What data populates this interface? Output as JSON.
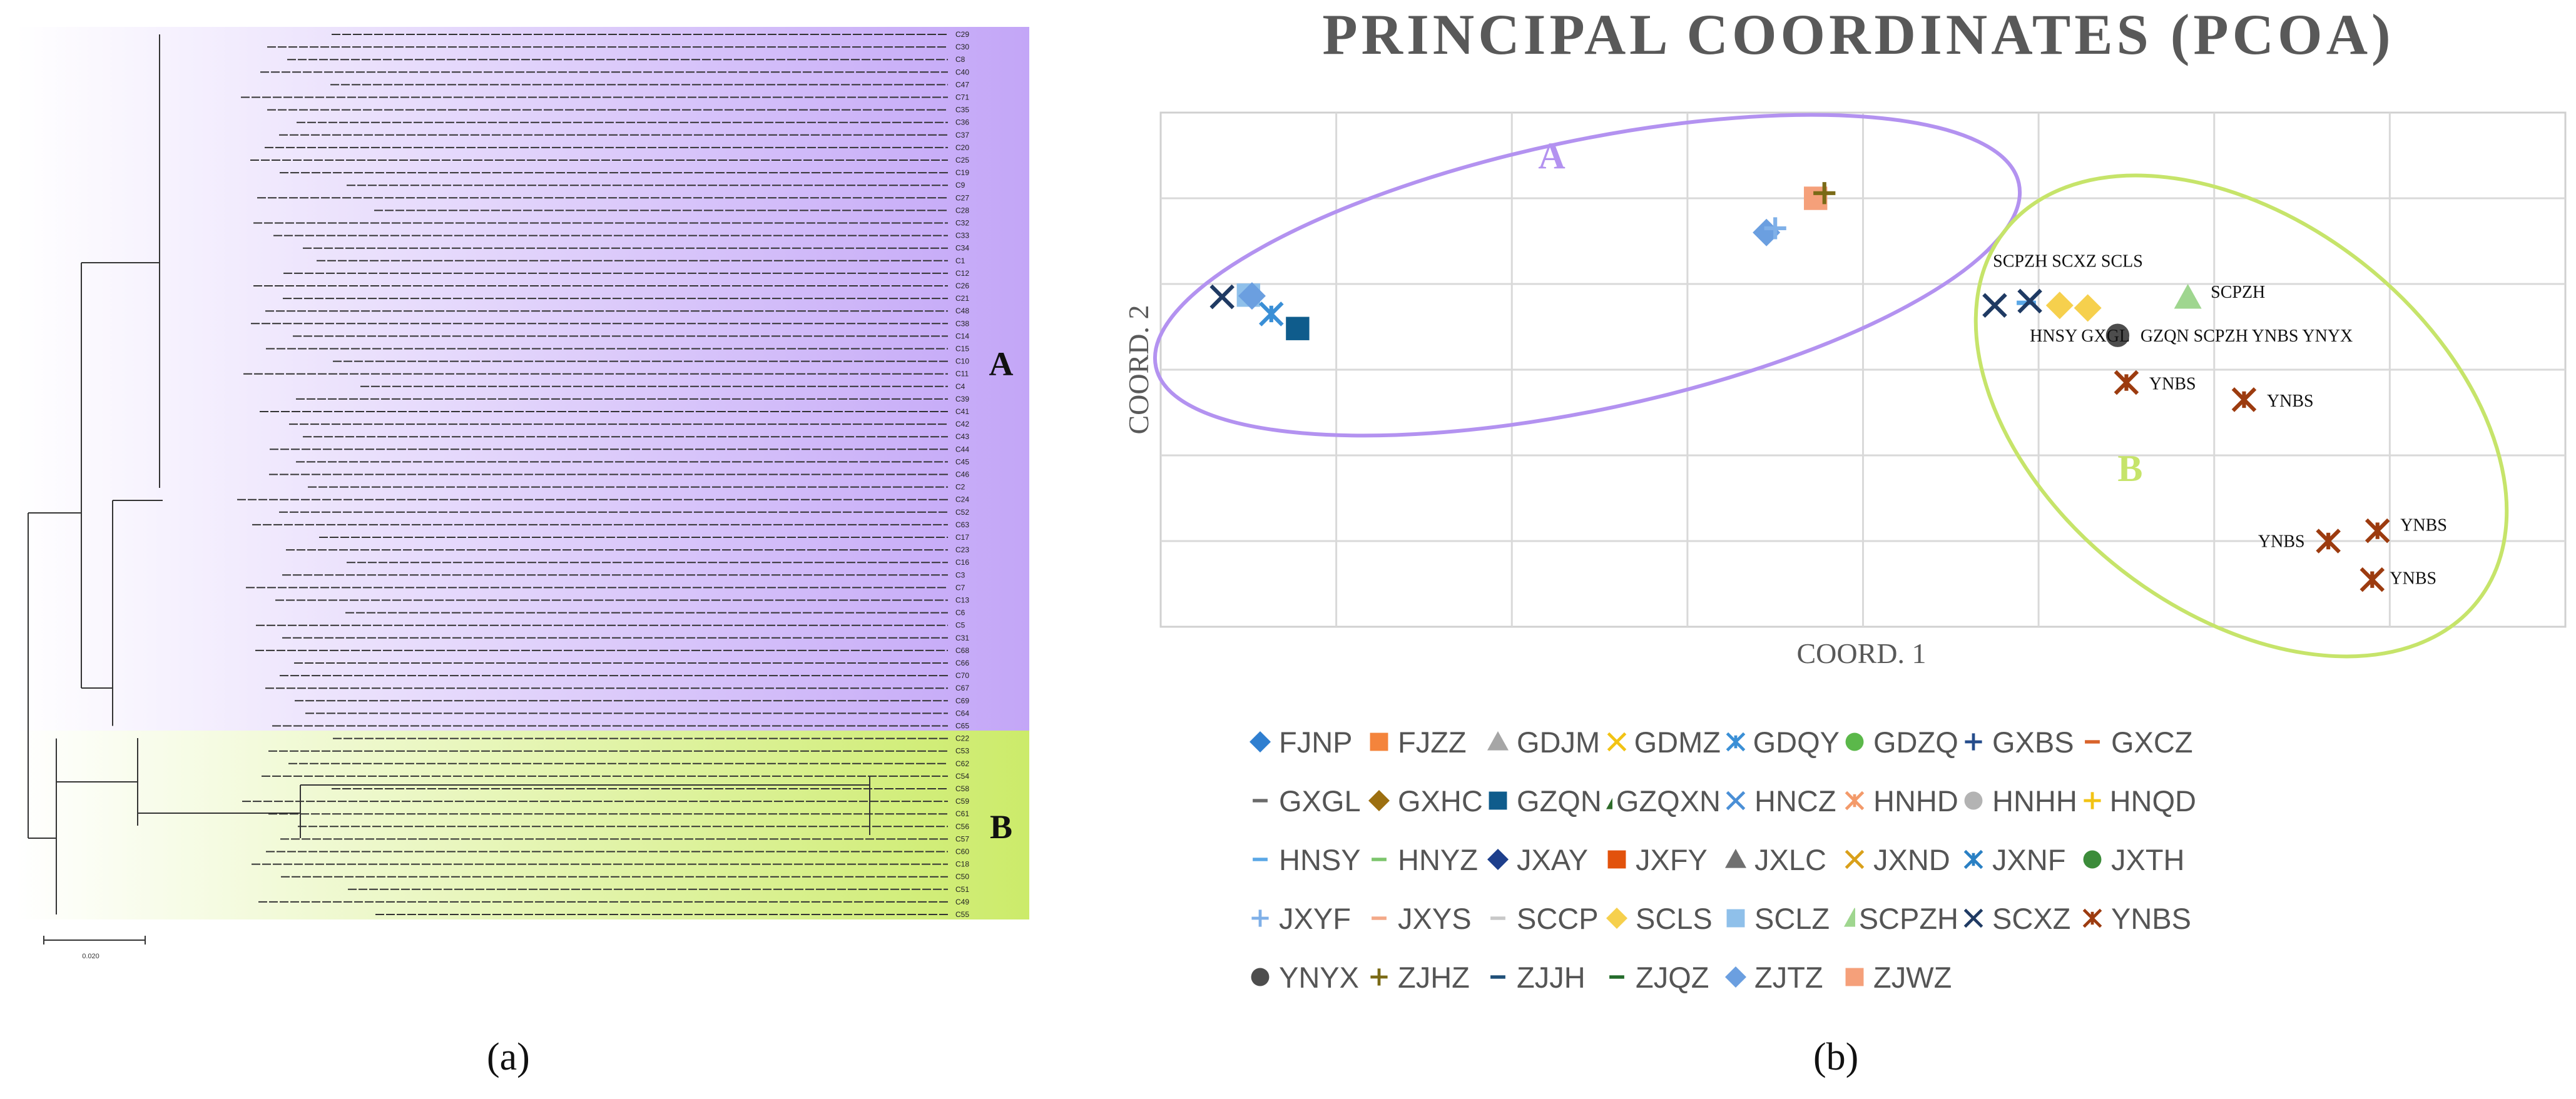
{
  "panel_a": {
    "caption": "(a)",
    "cluster_a_label": "A",
    "cluster_b_label": "B",
    "scale_label": "0.020",
    "colors": {
      "cluster_a": "#c3a6f7",
      "cluster_b": "#cceb6a"
    },
    "cluster_a_leaves": [
      "C29",
      "C30",
      "C8",
      "C40",
      "C47",
      "C71",
      "C35",
      "C36",
      "C37",
      "C20",
      "C25",
      "C19",
      "C9",
      "C27",
      "C28",
      "C32",
      "C33",
      "C34",
      "C1",
      "C12",
      "C26",
      "C21",
      "C48",
      "C38",
      "C14",
      "C15",
      "C10",
      "C11",
      "C4",
      "C39",
      "C41",
      "C42",
      "C43",
      "C44",
      "C45",
      "C46",
      "C2",
      "C24",
      "C52",
      "C63",
      "C17",
      "C23",
      "C16",
      "C3",
      "C7",
      "C13",
      "C6",
      "C5",
      "C31",
      "C68",
      "C66",
      "C70",
      "C67",
      "C69",
      "C64",
      "C65"
    ],
    "cluster_b_leaves": [
      "C22",
      "C53",
      "C62",
      "C54",
      "C58",
      "C59",
      "C61",
      "C56",
      "C57",
      "C60",
      "C18",
      "C50",
      "C51",
      "C49",
      "C55"
    ]
  },
  "panel_b": {
    "caption": "(b)",
    "chart_data": {
      "type": "scatter",
      "title": "PRINCIPAL COORDINATES (PCOA)",
      "xlabel": "COORD. 1",
      "ylabel": "COORD. 2",
      "xlim": [
        0,
        8
      ],
      "ylim": [
        0,
        6
      ],
      "grid": true,
      "groups": [
        {
          "label": "A",
          "color": "#b392f0"
        },
        {
          "label": "B",
          "color": "#c6e46a"
        }
      ],
      "points": [
        {
          "series": "SCXZ",
          "x": 0.35,
          "y": 3.85
        },
        {
          "series": "SCLZ",
          "x": 0.5,
          "y": 3.87
        },
        {
          "series": "ZJTZ",
          "x": 0.52,
          "y": 3.86
        },
        {
          "series": "GDQY",
          "x": 0.63,
          "y": 3.65
        },
        {
          "series": "GZQN",
          "x": 0.78,
          "y": 3.48
        },
        {
          "series": "ZJTZ",
          "x": 3.45,
          "y": 4.6
        },
        {
          "series": "JXYF",
          "x": 3.5,
          "y": 4.65
        },
        {
          "series": "ZJWZ",
          "x": 3.73,
          "y": 5.0
        },
        {
          "series": "ZJHZ",
          "x": 3.78,
          "y": 5.06
        },
        {
          "series": "SCXZ",
          "x": 4.75,
          "y": 3.75
        },
        {
          "series": "HNSY",
          "x": 4.93,
          "y": 3.78
        },
        {
          "series": "SCXZ",
          "x": 4.95,
          "y": 3.8
        },
        {
          "series": "SCLS",
          "x": 5.12,
          "y": 3.75
        },
        {
          "series": "SCLS",
          "x": 5.28,
          "y": 3.72
        },
        {
          "series": "SCPZH",
          "x": 5.85,
          "y": 3.84
        },
        {
          "series": "YNYX",
          "x": 5.45,
          "y": 3.4
        },
        {
          "series": "YNBS",
          "x": 5.5,
          "y": 2.85
        },
        {
          "series": "YNBS",
          "x": 6.17,
          "y": 2.65
        },
        {
          "series": "YNBS",
          "x": 6.65,
          "y": 1.0
        },
        {
          "series": "YNBS",
          "x": 6.93,
          "y": 1.12
        },
        {
          "series": "YNBS",
          "x": 6.9,
          "y": 0.55
        }
      ],
      "annotations": [
        {
          "text": "A",
          "x": 2.15,
          "y": 5.35,
          "group": "A"
        },
        {
          "text": "B",
          "x": 5.45,
          "y": 1.7,
          "group": "B"
        },
        {
          "text": "SCPZH SCXZ SCLS",
          "x": 4.74,
          "y": 4.2
        },
        {
          "text": "SCPZH",
          "x": 5.98,
          "y": 3.84
        },
        {
          "text": "HNSY GXGL",
          "x": 4.95,
          "y": 3.33
        },
        {
          "text": "GZQN SCPZH YNBS YNYX",
          "x": 5.58,
          "y": 3.33
        },
        {
          "text": "YNBS",
          "x": 5.63,
          "y": 2.77
        },
        {
          "text": "YNBS",
          "x": 6.3,
          "y": 2.57
        },
        {
          "text": "YNBS",
          "x": 6.25,
          "y": 0.93
        },
        {
          "text": "YNBS",
          "x": 7.06,
          "y": 1.12
        },
        {
          "text": "YNBS",
          "x": 7.0,
          "y": 0.5
        }
      ],
      "legend": [
        {
          "label": "FJNP",
          "symbol": "diamond",
          "color": "#2f7fd0"
        },
        {
          "label": "FJZZ",
          "symbol": "square",
          "color": "#f4843c"
        },
        {
          "label": "GDJM",
          "symbol": "triangle",
          "color": "#a6a6a6"
        },
        {
          "label": "GDMZ",
          "symbol": "x",
          "color": "#f2c314"
        },
        {
          "label": "GDQY",
          "symbol": "asterisk",
          "color": "#3a8fd6"
        },
        {
          "label": "GDZQ",
          "symbol": "circle",
          "color": "#5bb84a"
        },
        {
          "label": "GXBS",
          "symbol": "plus",
          "color": "#264d8c"
        },
        {
          "label": "GXCZ",
          "symbol": "dash",
          "color": "#d9632a"
        },
        {
          "label": "GXGL",
          "symbol": "dash",
          "color": "#6b6b6b"
        },
        {
          "label": "GXHC",
          "symbol": "diamond",
          "color": "#9c6f10"
        },
        {
          "label": "GZQN",
          "symbol": "square",
          "color": "#0f5c8c"
        },
        {
          "label": "GZQXN",
          "symbol": "triangle",
          "color": "#2e6b2a"
        },
        {
          "label": "HNCZ",
          "symbol": "x",
          "color": "#4a8fd6"
        },
        {
          "label": "HNHD",
          "symbol": "asterisk",
          "color": "#f39a6a"
        },
        {
          "label": "HNHH",
          "symbol": "circle",
          "color": "#b3b3b3"
        },
        {
          "label": "HNQD",
          "symbol": "plus",
          "color": "#f2c314"
        },
        {
          "label": "HNSY",
          "symbol": "dash",
          "color": "#5aa7e6"
        },
        {
          "label": "HNYZ",
          "symbol": "dash",
          "color": "#7cc56c"
        },
        {
          "label": "JXAY",
          "symbol": "diamond",
          "color": "#1e3f8c"
        },
        {
          "label": "JXFY",
          "symbol": "square",
          "color": "#e2520c"
        },
        {
          "label": "JXLC",
          "symbol": "triangle",
          "color": "#707070"
        },
        {
          "label": "JXND",
          "symbol": "x",
          "color": "#d9a01a"
        },
        {
          "label": "JXNF",
          "symbol": "asterisk",
          "color": "#2a80c4"
        },
        {
          "label": "JXTH",
          "symbol": "circle",
          "color": "#3c8c3a"
        },
        {
          "label": "JXYF",
          "symbol": "plus",
          "color": "#7fb0e8"
        },
        {
          "label": "JXYS",
          "symbol": "dash",
          "color": "#f3a988"
        },
        {
          "label": "SCCP",
          "symbol": "dash",
          "color": "#c8c8c8"
        },
        {
          "label": "SCLS",
          "symbol": "diamond",
          "color": "#f6d04d"
        },
        {
          "label": "SCLZ",
          "symbol": "square",
          "color": "#8fc0ea"
        },
        {
          "label": "SCPZH",
          "symbol": "triangle",
          "color": "#9fd68f"
        },
        {
          "label": "SCXZ",
          "symbol": "x",
          "color": "#1f3a63"
        },
        {
          "label": "YNBS",
          "symbol": "asterisk",
          "color": "#9c3b0f"
        },
        {
          "label": "YNYX",
          "symbol": "circle",
          "color": "#4d4d4d"
        },
        {
          "label": "ZJHZ",
          "symbol": "plus",
          "color": "#7a6a16"
        },
        {
          "label": "ZJJH",
          "symbol": "dash",
          "color": "#1f4f78"
        },
        {
          "label": "ZJQZ",
          "symbol": "dash",
          "color": "#236b2a"
        },
        {
          "label": "ZJTZ",
          "symbol": "diamond",
          "color": "#6b9fe0"
        },
        {
          "label": "ZJWZ",
          "symbol": "square",
          "color": "#f5a07a"
        }
      ]
    }
  }
}
